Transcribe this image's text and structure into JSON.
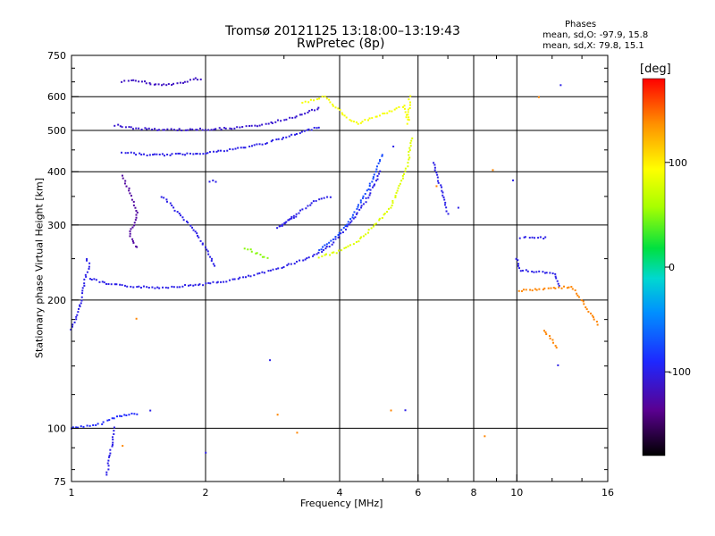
{
  "header": {
    "title": "Tromsø 20121125 13:18:00–13:19:43",
    "subtitle": "RwPretec (8p)",
    "phases_heading": "Phases",
    "phases_line1": "mean, sd,O: -97.9, 15.8",
    "phases_line2": "mean, sd,X:  79.8, 15.1"
  },
  "colorbar": {
    "unit": "[deg]",
    "ticks": [
      {
        "value": 100,
        "label": "100"
      },
      {
        "value": 0,
        "label": "0"
      },
      {
        "value": -100,
        "label": "-100"
      }
    ],
    "range": [
      -180,
      180
    ]
  },
  "chart_data": {
    "type": "scatter",
    "xlabel": "Frequency [MHz]",
    "ylabel": "Stationary phase Virtual Height [km]",
    "x_scale": "log",
    "y_scale": "log",
    "xlim": [
      1,
      16
    ],
    "ylim": [
      75,
      750
    ],
    "x_ticks": [
      {
        "value": 1,
        "label": "1"
      },
      {
        "value": 2,
        "label": "2"
      },
      {
        "value": 4,
        "label": "4"
      },
      {
        "value": 6,
        "label": "6"
      },
      {
        "value": 8,
        "label": "8"
      },
      {
        "value": 10,
        "label": "10"
      },
      {
        "value": 16,
        "label": "16"
      }
    ],
    "y_ticks": [
      {
        "value": 75,
        "label": "75"
      },
      {
        "value": 100,
        "label": "100"
      },
      {
        "value": 200,
        "label": "200"
      },
      {
        "value": 300,
        "label": "300"
      },
      {
        "value": 400,
        "label": "400"
      },
      {
        "value": 500,
        "label": "500"
      },
      {
        "value": 600,
        "label": "600"
      },
      {
        "value": 750,
        "label": "750"
      }
    ],
    "gridlines_x": [
      1,
      2,
      4,
      6,
      8,
      10,
      16
    ],
    "gridlines_y": [
      100,
      200,
      300,
      400,
      500,
      600
    ],
    "traces": [
      {
        "phase": -90,
        "points": [
          [
            1.0,
            100
          ],
          [
            1.05,
            101
          ],
          [
            1.1,
            101
          ],
          [
            1.15,
            102
          ],
          [
            1.2,
            104
          ],
          [
            1.25,
            106
          ],
          [
            1.3,
            107
          ],
          [
            1.35,
            108
          ],
          [
            1.4,
            108
          ]
        ]
      },
      {
        "phase": -100,
        "points": [
          [
            1.0,
            170
          ],
          [
            1.02,
            180
          ],
          [
            1.04,
            190
          ],
          [
            1.05,
            200
          ],
          [
            1.06,
            210
          ],
          [
            1.08,
            230
          ],
          [
            1.1,
            240
          ],
          [
            1.08,
            250
          ]
        ]
      },
      {
        "phase": -100,
        "points": [
          [
            1.1,
            225
          ],
          [
            1.2,
            218
          ],
          [
            1.3,
            216
          ],
          [
            1.4,
            215
          ],
          [
            1.5,
            214
          ],
          [
            1.6,
            214
          ],
          [
            1.7,
            215
          ],
          [
            1.8,
            216
          ],
          [
            2.0,
            218
          ],
          [
            2.2,
            221
          ],
          [
            2.5,
            227
          ],
          [
            2.8,
            234
          ],
          [
            3.0,
            240
          ],
          [
            3.3,
            248
          ],
          [
            3.6,
            258
          ],
          [
            3.8,
            268
          ],
          [
            4.0,
            283
          ],
          [
            4.2,
            300
          ],
          [
            4.4,
            320
          ],
          [
            4.6,
            345
          ],
          [
            4.8,
            375
          ],
          [
            4.95,
            400
          ]
        ]
      },
      {
        "phase": -75,
        "points": [
          [
            3.6,
            262
          ],
          [
            3.8,
            272
          ],
          [
            4.0,
            288
          ],
          [
            4.2,
            305
          ],
          [
            4.4,
            330
          ],
          [
            4.6,
            360
          ],
          [
            4.8,
            395
          ],
          [
            5.0,
            440
          ]
        ]
      },
      {
        "phase": 80,
        "points": [
          [
            3.6,
            252
          ],
          [
            4.0,
            260
          ],
          [
            4.4,
            275
          ],
          [
            4.8,
            300
          ],
          [
            5.2,
            330
          ],
          [
            5.4,
            360
          ],
          [
            5.6,
            395
          ],
          [
            5.7,
            420
          ],
          [
            5.75,
            450
          ],
          [
            5.8,
            480
          ]
        ]
      },
      {
        "phase": 50,
        "points": [
          [
            2.45,
            265
          ],
          [
            2.55,
            260
          ],
          [
            2.65,
            255
          ],
          [
            2.75,
            250
          ]
        ]
      },
      {
        "phase": -100,
        "points": [
          [
            1.3,
            445
          ],
          [
            1.4,
            440
          ],
          [
            1.5,
            438
          ],
          [
            1.6,
            438
          ],
          [
            1.8,
            440
          ],
          [
            2.0,
            443
          ],
          [
            2.2,
            448
          ],
          [
            2.5,
            458
          ],
          [
            2.8,
            470
          ],
          [
            3.0,
            480
          ],
          [
            3.3,
            495
          ],
          [
            3.6,
            510
          ]
        ]
      },
      {
        "phase": -110,
        "points": [
          [
            1.25,
            515
          ],
          [
            1.4,
            505
          ],
          [
            1.6,
            502
          ],
          [
            1.8,
            502
          ],
          [
            2.0,
            503
          ],
          [
            2.2,
            505
          ],
          [
            2.5,
            510
          ],
          [
            2.8,
            520
          ],
          [
            3.0,
            530
          ],
          [
            3.3,
            545
          ],
          [
            3.6,
            565
          ]
        ]
      },
      {
        "phase": -115,
        "points": [
          [
            1.3,
            650
          ],
          [
            1.4,
            655
          ],
          [
            1.55,
            640
          ],
          [
            1.65,
            640
          ],
          [
            1.75,
            645
          ],
          [
            1.9,
            660
          ],
          [
            1.95,
            660
          ]
        ]
      },
      {
        "phase": -130,
        "points": [
          [
            1.3,
            390
          ],
          [
            1.35,
            360
          ],
          [
            1.38,
            340
          ],
          [
            1.4,
            320
          ],
          [
            1.38,
            300
          ],
          [
            1.35,
            285
          ],
          [
            1.4,
            265
          ]
        ]
      },
      {
        "phase": 90,
        "points": [
          [
            3.3,
            580
          ],
          [
            3.5,
            590
          ],
          [
            3.7,
            600
          ],
          [
            4.2,
            530
          ],
          [
            4.4,
            520
          ],
          [
            5.6,
            570
          ],
          [
            5.7,
            520
          ],
          [
            5.75,
            600
          ]
        ]
      },
      {
        "phase": -100,
        "points": [
          [
            2.05,
            380
          ],
          [
            2.1,
            380
          ],
          [
            1.6,
            350
          ],
          [
            1.9,
            290
          ],
          [
            2.1,
            240
          ],
          [
            3.2,
            315
          ],
          [
            2.9,
            295
          ],
          [
            3.5,
            340
          ],
          [
            3.8,
            350
          ]
        ]
      },
      {
        "phase": -100,
        "points": [
          [
            6.5,
            420
          ],
          [
            7.0,
            320
          ],
          [
            9.8,
            380
          ],
          [
            10.0,
            250
          ],
          [
            10.2,
            235
          ],
          [
            12.2,
            230
          ],
          [
            12.4,
            215
          ],
          [
            12.6,
            640
          ],
          [
            12.4,
            140
          ],
          [
            10.2,
            280
          ],
          [
            11.6,
            280
          ]
        ]
      },
      {
        "phase": 140,
        "points": [
          [
            1.4,
            180
          ],
          [
            1.3,
            91
          ],
          [
            2.9,
            108
          ],
          [
            5.2,
            110
          ],
          [
            8.5,
            96
          ],
          [
            8.8,
            405
          ],
          [
            6.6,
            370
          ],
          [
            11.2,
            600
          ],
          [
            10.1,
            210
          ],
          [
            13.3,
            215
          ],
          [
            15.2,
            175
          ],
          [
            11.5,
            170
          ],
          [
            12.3,
            155
          ],
          [
            3.2,
            98
          ]
        ]
      },
      {
        "phase": -100,
        "points": [
          [
            1.5,
            110
          ],
          [
            2.0,
            88
          ],
          [
            2.8,
            145
          ],
          [
            5.6,
            110
          ],
          [
            5.3,
            460
          ],
          [
            7.4,
            330
          ],
          [
            1.2,
            78
          ],
          [
            1.25,
            100
          ]
        ]
      }
    ]
  }
}
